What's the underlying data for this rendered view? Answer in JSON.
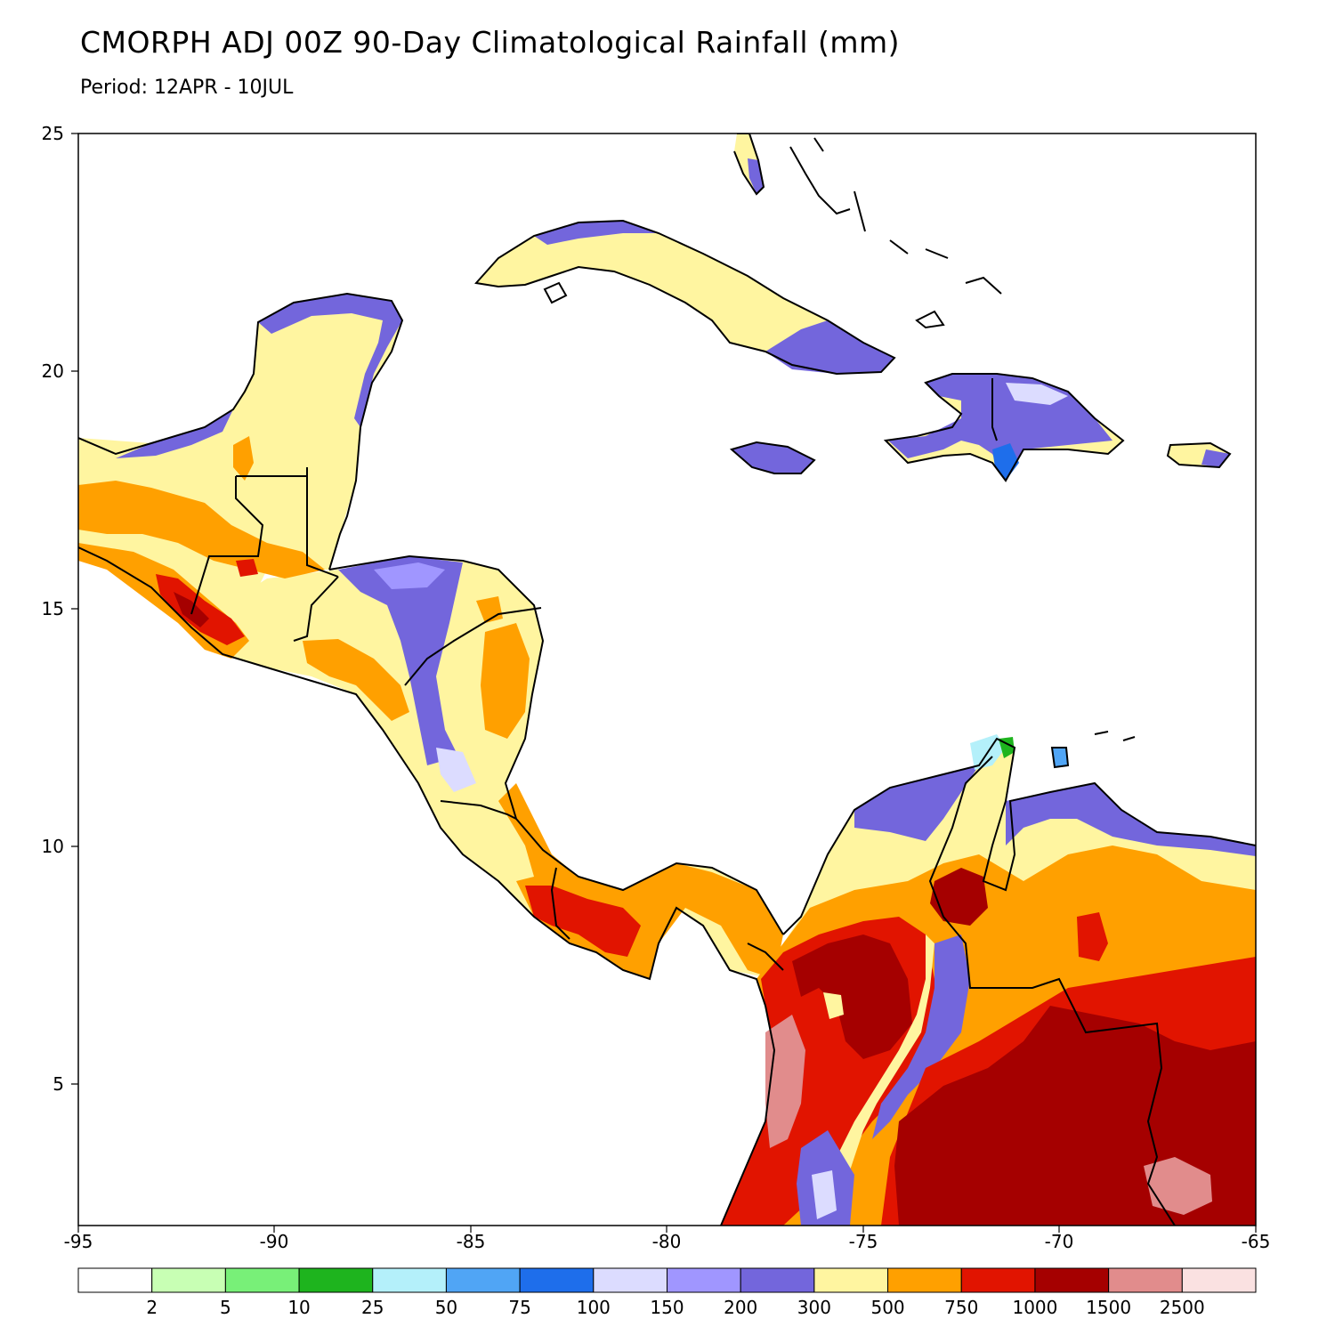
{
  "title": "CMORPH ADJ 00Z 90-Day Climatological Rainfall (mm)",
  "subtitle": "Period: 12APR - 10JUL",
  "axes": {
    "lon_ticks": [
      "-95",
      "-90",
      "-85",
      "-80",
      "-75",
      "-70",
      "-65"
    ],
    "lat_ticks": [
      "25",
      "20",
      "15",
      "10",
      "5"
    ],
    "lon_range": [
      -95,
      -65
    ],
    "lat_range": [
      2,
      25
    ]
  },
  "colorbar": {
    "levels": [
      "2",
      "5",
      "10",
      "25",
      "50",
      "75",
      "100",
      "150",
      "200",
      "300",
      "500",
      "750",
      "1000",
      "1500",
      "2500"
    ],
    "colors": [
      "#ffffff",
      "#c8ffb4",
      "#78f078",
      "#1eb41e",
      "#b4f0fa",
      "#50a5f5",
      "#1e6eeb",
      "#dcdcff",
      "#a096ff",
      "#7366dc",
      "#fff5a0",
      "#ffa000",
      "#e11400",
      "#a50000",
      "#e18c8c",
      "#fae1e1"
    ]
  },
  "map": {
    "ocean_color": "#ffffff",
    "coast_color": "#000000",
    "border_color": "#000000",
    "subborder_color": "#aaaaaa"
  }
}
